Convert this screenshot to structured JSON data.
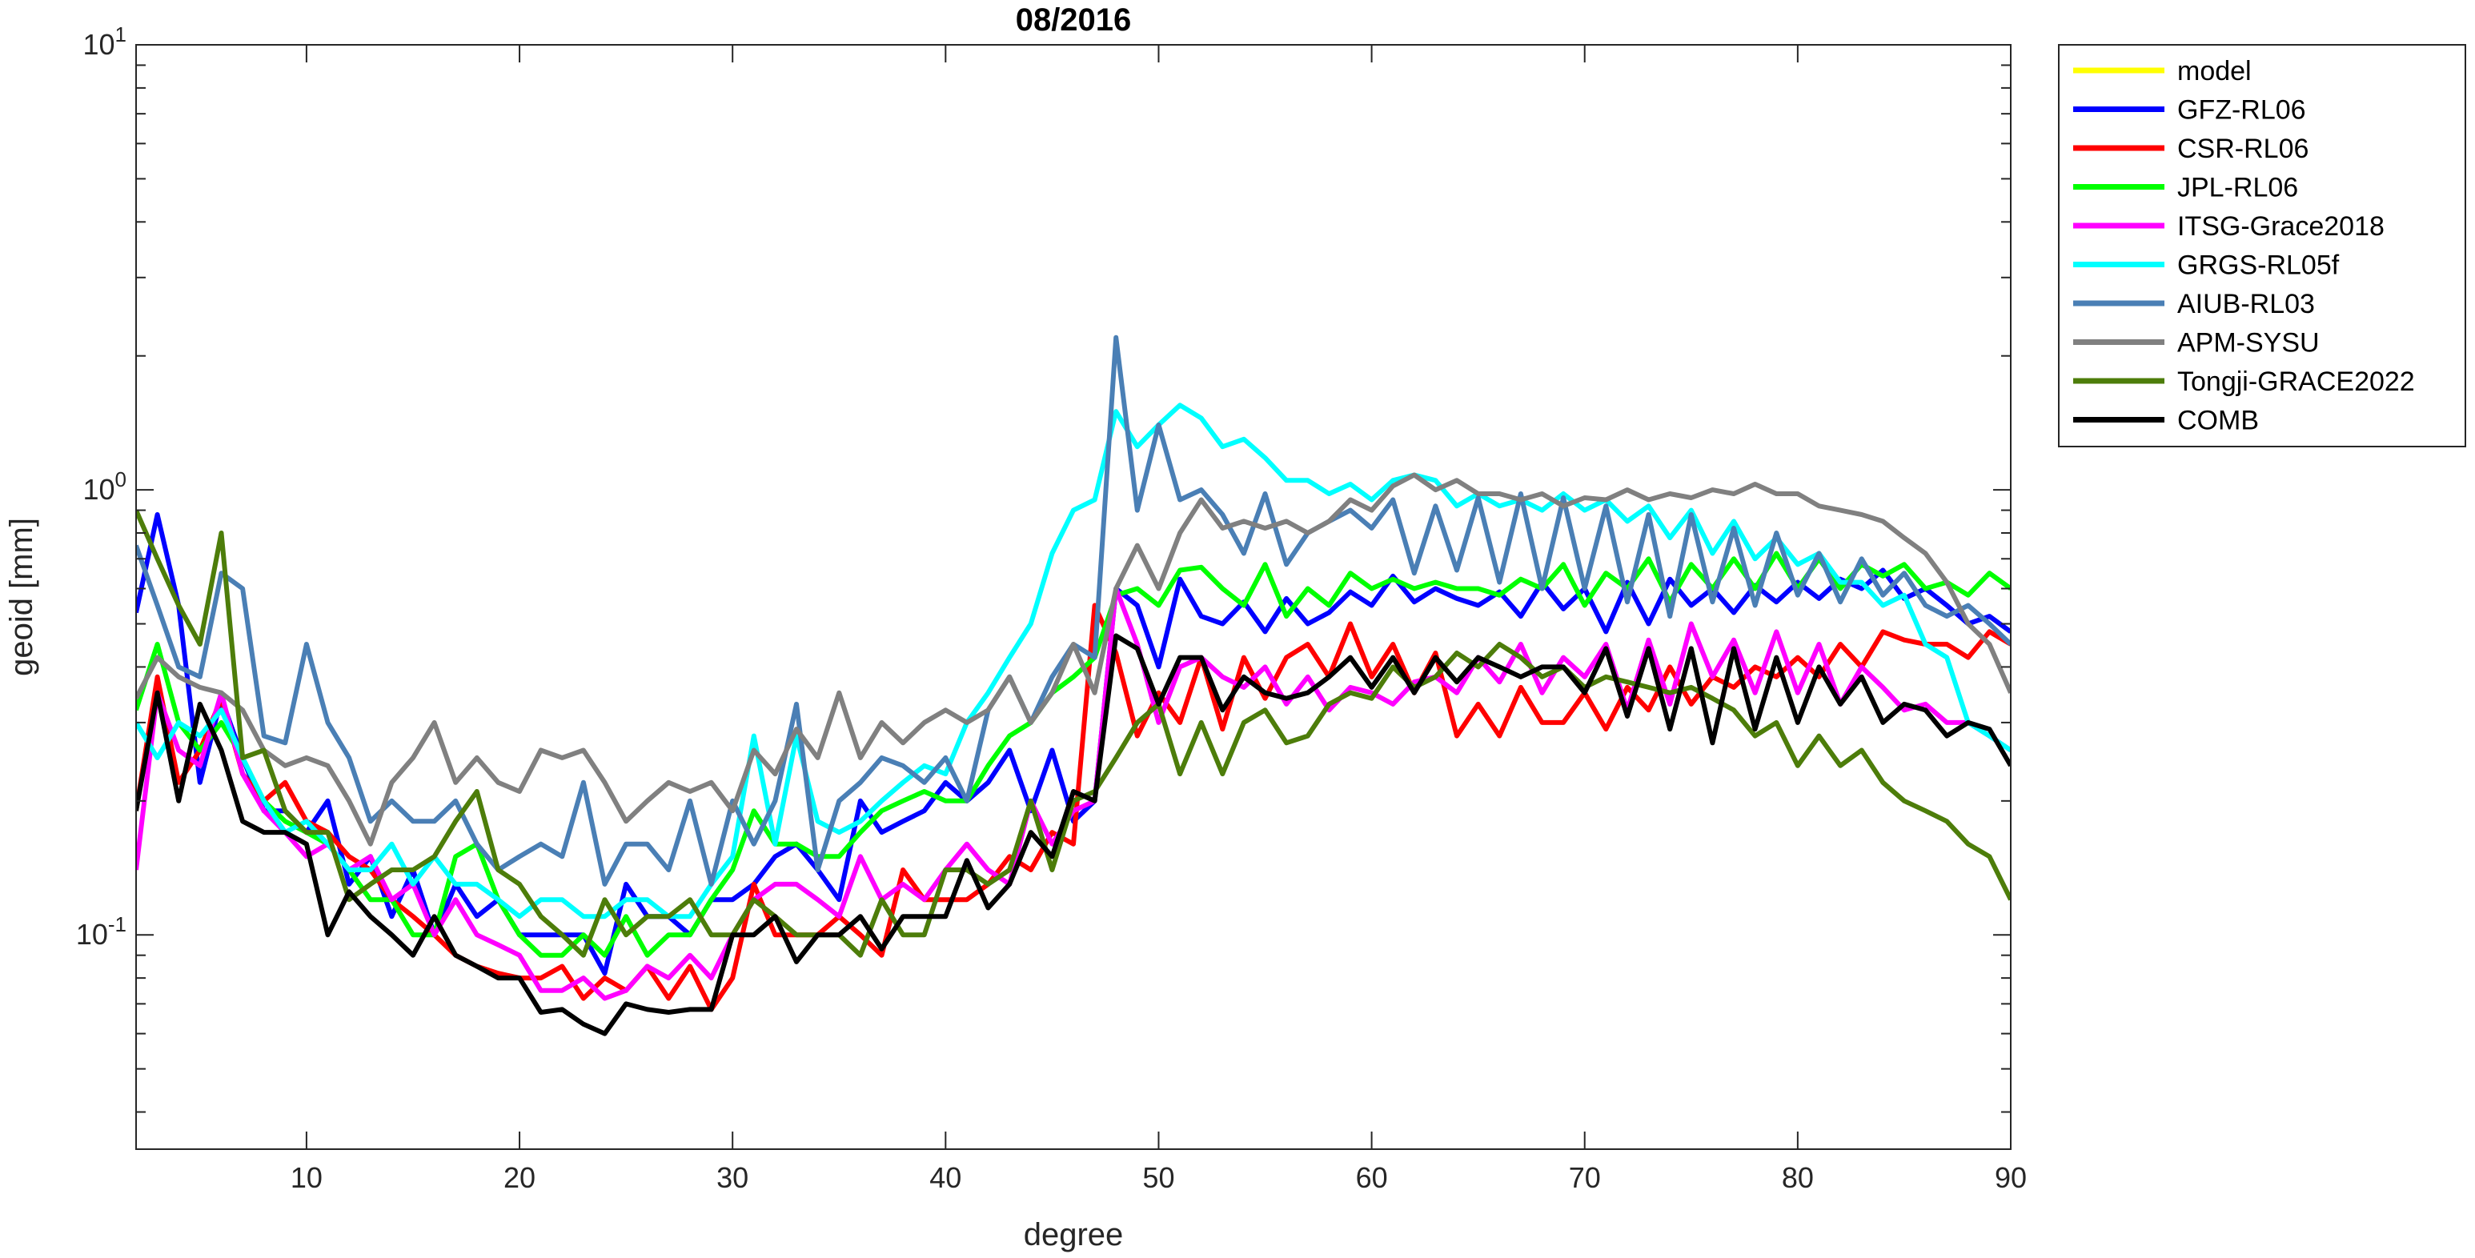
{
  "chart_data": {
    "type": "line",
    "title": "08/2016",
    "xlabel": "degree",
    "ylabel": "geoid [mm]",
    "xlim": [
      2,
      90
    ],
    "ylim": [
      0.033,
      10
    ],
    "yscale": "log",
    "grid": false,
    "legend_position": "outside-top-right",
    "x_ticks": [
      {
        "value": 10,
        "label": "10"
      },
      {
        "value": 20,
        "label": "20"
      },
      {
        "value": 30,
        "label": "30"
      },
      {
        "value": 40,
        "label": "40"
      },
      {
        "value": 50,
        "label": "50"
      },
      {
        "value": 60,
        "label": "60"
      },
      {
        "value": 70,
        "label": "70"
      },
      {
        "value": 80,
        "label": "80"
      },
      {
        "value": 90,
        "label": "90"
      }
    ],
    "y_ticks": [
      {
        "value": 10,
        "base": "10",
        "exp": "1"
      },
      {
        "value": 1,
        "base": "10",
        "exp": "0"
      },
      {
        "value": 0.1,
        "base": "10",
        "exp": "-1"
      }
    ],
    "x_start": 2,
    "series": [
      {
        "name": "model",
        "color": "#ffff00",
        "values": []
      },
      {
        "name": "GFZ-RL06",
        "color": "#0000ff",
        "values": [
          0.53,
          0.88,
          0.55,
          0.22,
          0.34,
          0.25,
          0.19,
          0.19,
          0.17,
          0.2,
          0.13,
          0.15,
          0.11,
          0.14,
          0.1,
          0.13,
          0.11,
          0.12,
          0.1,
          0.1,
          0.1,
          0.1,
          0.082,
          0.13,
          0.11,
          0.11,
          0.1,
          0.12,
          0.12,
          0.13,
          0.15,
          0.16,
          0.14,
          0.12,
          0.2,
          0.17,
          0.18,
          0.19,
          0.22,
          0.2,
          0.22,
          0.26,
          0.19,
          0.26,
          0.18,
          0.2,
          0.6,
          0.55,
          0.4,
          0.63,
          0.52,
          0.5,
          0.56,
          0.48,
          0.57,
          0.5,
          0.53,
          0.59,
          0.55,
          0.64,
          0.56,
          0.6,
          0.57,
          0.55,
          0.59,
          0.52,
          0.62,
          0.54,
          0.6,
          0.48,
          0.62,
          0.5,
          0.63,
          0.55,
          0.6,
          0.53,
          0.61,
          0.56,
          0.62,
          0.57,
          0.63,
          0.6,
          0.66,
          0.57,
          0.6,
          0.55,
          0.5,
          0.52,
          0.48
        ]
      },
      {
        "name": "CSR-RL06",
        "color": "#ff0000",
        "values": [
          0.19,
          0.38,
          0.22,
          0.26,
          0.34,
          0.23,
          0.2,
          0.22,
          0.18,
          0.17,
          0.15,
          0.14,
          0.12,
          0.11,
          0.1,
          0.09,
          0.085,
          0.082,
          0.08,
          0.08,
          0.085,
          0.072,
          0.08,
          0.075,
          0.085,
          0.072,
          0.085,
          0.068,
          0.08,
          0.13,
          0.1,
          0.1,
          0.1,
          0.11,
          0.1,
          0.09,
          0.14,
          0.12,
          0.12,
          0.12,
          0.13,
          0.15,
          0.14,
          0.17,
          0.16,
          0.55,
          0.43,
          0.28,
          0.35,
          0.3,
          0.42,
          0.29,
          0.42,
          0.34,
          0.42,
          0.45,
          0.38,
          0.5,
          0.38,
          0.45,
          0.35,
          0.43,
          0.28,
          0.33,
          0.28,
          0.36,
          0.3,
          0.3,
          0.35,
          0.29,
          0.36,
          0.32,
          0.4,
          0.33,
          0.38,
          0.36,
          0.4,
          0.38,
          0.42,
          0.38,
          0.45,
          0.4,
          0.48,
          0.46,
          0.45,
          0.45,
          0.42,
          0.48,
          0.45
        ]
      },
      {
        "name": "JPL-RL06",
        "color": "#00ff00",
        "values": [
          0.32,
          0.45,
          0.3,
          0.26,
          0.3,
          0.25,
          0.2,
          0.18,
          0.17,
          0.16,
          0.14,
          0.12,
          0.12,
          0.1,
          0.1,
          0.15,
          0.16,
          0.12,
          0.1,
          0.09,
          0.09,
          0.1,
          0.09,
          0.11,
          0.09,
          0.1,
          0.1,
          0.12,
          0.14,
          0.19,
          0.16,
          0.16,
          0.15,
          0.15,
          0.17,
          0.19,
          0.2,
          0.21,
          0.2,
          0.2,
          0.24,
          0.28,
          0.3,
          0.35,
          0.38,
          0.42,
          0.58,
          0.6,
          0.55,
          0.66,
          0.67,
          0.6,
          0.55,
          0.68,
          0.52,
          0.6,
          0.55,
          0.65,
          0.6,
          0.63,
          0.6,
          0.62,
          0.6,
          0.6,
          0.58,
          0.63,
          0.6,
          0.68,
          0.55,
          0.65,
          0.6,
          0.7,
          0.56,
          0.68,
          0.6,
          0.7,
          0.6,
          0.72,
          0.6,
          0.7,
          0.6,
          0.68,
          0.64,
          0.68,
          0.6,
          0.62,
          0.58,
          0.65,
          0.6
        ]
      },
      {
        "name": "ITSG-Grace2018",
        "color": "#ff00ff",
        "values": [
          0.14,
          0.35,
          0.26,
          0.24,
          0.35,
          0.23,
          0.19,
          0.17,
          0.15,
          0.16,
          0.14,
          0.15,
          0.12,
          0.13,
          0.1,
          0.12,
          0.1,
          0.095,
          0.09,
          0.075,
          0.075,
          0.08,
          0.072,
          0.075,
          0.085,
          0.08,
          0.09,
          0.08,
          0.1,
          0.12,
          0.13,
          0.13,
          0.12,
          0.11,
          0.15,
          0.12,
          0.13,
          0.12,
          0.14,
          0.16,
          0.14,
          0.13,
          0.2,
          0.16,
          0.19,
          0.2,
          0.6,
          0.45,
          0.3,
          0.4,
          0.42,
          0.38,
          0.36,
          0.4,
          0.33,
          0.38,
          0.32,
          0.36,
          0.35,
          0.33,
          0.37,
          0.38,
          0.35,
          0.42,
          0.37,
          0.45,
          0.35,
          0.42,
          0.38,
          0.45,
          0.32,
          0.46,
          0.33,
          0.5,
          0.38,
          0.46,
          0.35,
          0.48,
          0.35,
          0.45,
          0.33,
          0.4,
          0.36,
          0.32,
          0.33,
          0.3,
          0.3,
          0.28,
          0.26
        ]
      },
      {
        "name": "GRGS-RL05f",
        "color": "#00ffff",
        "values": [
          0.3,
          0.25,
          0.3,
          0.28,
          0.32,
          0.25,
          0.2,
          0.17,
          0.18,
          0.16,
          0.14,
          0.14,
          0.16,
          0.13,
          0.15,
          0.13,
          0.13,
          0.12,
          0.11,
          0.12,
          0.12,
          0.11,
          0.11,
          0.12,
          0.12,
          0.11,
          0.11,
          0.13,
          0.15,
          0.28,
          0.16,
          0.28,
          0.18,
          0.17,
          0.18,
          0.2,
          0.22,
          0.24,
          0.23,
          0.3,
          0.35,
          0.42,
          0.5,
          0.72,
          0.9,
          0.95,
          1.5,
          1.25,
          1.4,
          1.55,
          1.45,
          1.25,
          1.3,
          1.18,
          1.05,
          1.05,
          0.98,
          1.03,
          0.95,
          1.05,
          1.08,
          1.05,
          0.92,
          0.98,
          0.92,
          0.95,
          0.9,
          0.98,
          0.9,
          0.95,
          0.85,
          0.92,
          0.78,
          0.9,
          0.72,
          0.85,
          0.7,
          0.78,
          0.68,
          0.72,
          0.62,
          0.62,
          0.55,
          0.58,
          0.45,
          0.42,
          0.3,
          0.28,
          0.26
        ]
      },
      {
        "name": "AIUB-RL03",
        "color": "#4a7fb5",
        "values": [
          0.75,
          0.55,
          0.4,
          0.38,
          0.65,
          0.6,
          0.28,
          0.27,
          0.45,
          0.3,
          0.25,
          0.18,
          0.2,
          0.18,
          0.18,
          0.2,
          0.16,
          0.14,
          0.15,
          0.16,
          0.15,
          0.22,
          0.13,
          0.16,
          0.16,
          0.14,
          0.2,
          0.13,
          0.2,
          0.16,
          0.2,
          0.33,
          0.14,
          0.2,
          0.22,
          0.25,
          0.24,
          0.22,
          0.25,
          0.2,
          0.32,
          0.38,
          0.3,
          0.38,
          0.45,
          0.42,
          2.2,
          0.9,
          1.4,
          0.95,
          1.0,
          0.88,
          0.72,
          0.98,
          0.68,
          0.8,
          0.85,
          0.9,
          0.82,
          0.95,
          0.65,
          0.92,
          0.66,
          0.96,
          0.62,
          0.98,
          0.6,
          0.96,
          0.6,
          0.92,
          0.56,
          0.88,
          0.52,
          0.88,
          0.56,
          0.82,
          0.55,
          0.8,
          0.58,
          0.72,
          0.56,
          0.7,
          0.58,
          0.65,
          0.55,
          0.52,
          0.55,
          0.5,
          0.45
        ]
      },
      {
        "name": "APM-SYSU",
        "color": "#808080",
        "values": [
          0.34,
          0.42,
          0.38,
          0.36,
          0.35,
          0.32,
          0.26,
          0.24,
          0.25,
          0.24,
          0.2,
          0.16,
          0.22,
          0.25,
          0.3,
          0.22,
          0.25,
          0.22,
          0.21,
          0.26,
          0.25,
          0.26,
          0.22,
          0.18,
          0.2,
          0.22,
          0.21,
          0.22,
          0.19,
          0.26,
          0.23,
          0.29,
          0.25,
          0.35,
          0.25,
          0.3,
          0.27,
          0.3,
          0.32,
          0.3,
          0.32,
          0.38,
          0.3,
          0.35,
          0.45,
          0.35,
          0.6,
          0.75,
          0.6,
          0.8,
          0.95,
          0.82,
          0.85,
          0.82,
          0.85,
          0.8,
          0.85,
          0.95,
          0.9,
          1.02,
          1.08,
          1.0,
          1.05,
          0.98,
          0.98,
          0.95,
          0.98,
          0.92,
          0.96,
          0.95,
          1.0,
          0.95,
          0.98,
          0.96,
          1.0,
          0.98,
          1.03,
          0.98,
          0.98,
          0.92,
          0.9,
          0.88,
          0.85,
          0.78,
          0.72,
          0.62,
          0.5,
          0.45,
          0.35
        ]
      },
      {
        "name": "Tongji-GRACE2022",
        "color": "#4d7d0a",
        "values": [
          0.9,
          0.7,
          0.55,
          0.45,
          0.8,
          0.25,
          0.26,
          0.19,
          0.17,
          0.17,
          0.12,
          0.13,
          0.14,
          0.14,
          0.15,
          0.18,
          0.21,
          0.14,
          0.13,
          0.11,
          0.1,
          0.09,
          0.12,
          0.1,
          0.11,
          0.11,
          0.12,
          0.1,
          0.1,
          0.12,
          0.11,
          0.1,
          0.1,
          0.1,
          0.09,
          0.12,
          0.1,
          0.1,
          0.14,
          0.14,
          0.13,
          0.14,
          0.2,
          0.14,
          0.2,
          0.21,
          0.25,
          0.3,
          0.33,
          0.23,
          0.3,
          0.23,
          0.3,
          0.32,
          0.27,
          0.28,
          0.33,
          0.35,
          0.34,
          0.4,
          0.36,
          0.38,
          0.43,
          0.4,
          0.45,
          0.42,
          0.38,
          0.4,
          0.36,
          0.38,
          0.37,
          0.36,
          0.35,
          0.36,
          0.34,
          0.32,
          0.28,
          0.3,
          0.24,
          0.28,
          0.24,
          0.26,
          0.22,
          0.2,
          0.19,
          0.18,
          0.16,
          0.15,
          0.12
        ]
      },
      {
        "name": "COMB",
        "color": "#000000",
        "values": [
          0.19,
          0.35,
          0.2,
          0.33,
          0.26,
          0.18,
          0.17,
          0.17,
          0.16,
          0.1,
          0.125,
          0.11,
          0.1,
          0.09,
          0.11,
          0.09,
          0.085,
          0.08,
          0.08,
          0.067,
          0.068,
          0.063,
          0.06,
          0.07,
          0.068,
          0.067,
          0.068,
          0.068,
          0.1,
          0.1,
          0.11,
          0.087,
          0.1,
          0.1,
          0.11,
          0.093,
          0.11,
          0.11,
          0.11,
          0.147,
          0.115,
          0.13,
          0.17,
          0.15,
          0.21,
          0.2,
          0.47,
          0.44,
          0.33,
          0.42,
          0.42,
          0.32,
          0.38,
          0.35,
          0.34,
          0.35,
          0.38,
          0.42,
          0.36,
          0.42,
          0.35,
          0.42,
          0.37,
          0.42,
          0.4,
          0.38,
          0.4,
          0.4,
          0.35,
          0.44,
          0.31,
          0.44,
          0.29,
          0.44,
          0.27,
          0.44,
          0.29,
          0.42,
          0.3,
          0.4,
          0.33,
          0.38,
          0.3,
          0.33,
          0.32,
          0.28,
          0.3,
          0.29,
          0.24
        ]
      }
    ]
  }
}
